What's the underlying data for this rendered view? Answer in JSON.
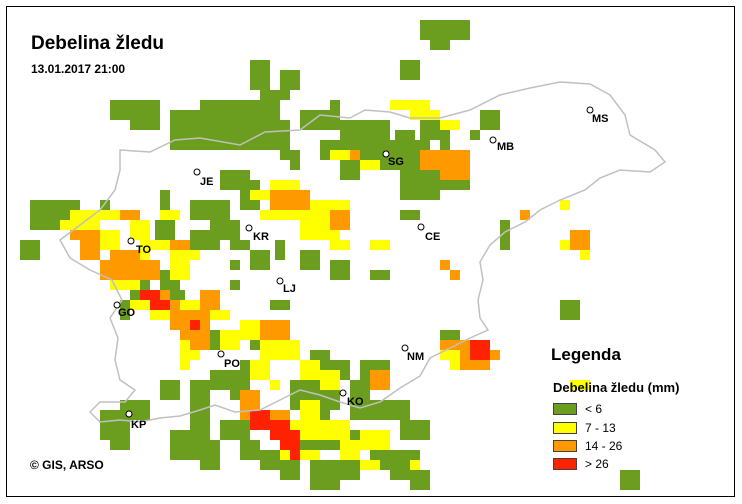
{
  "map": {
    "title": "Debelina žledu",
    "timestamp": "13.01.2017 21:00",
    "copyright": "© GIS, ARSO"
  },
  "legend": {
    "title": "Legenda",
    "subtitle": "Debelina žledu (mm)",
    "items": [
      {
        "label": "< 6",
        "color": "#6b9e1f"
      },
      {
        "label": "7 - 13",
        "color": "#ffff00"
      },
      {
        "label": "14 - 26",
        "color": "#ff9900"
      },
      {
        "label": "> 26",
        "color": "#ff2200"
      }
    ]
  },
  "cities": [
    {
      "code": "MS"
    },
    {
      "code": "MB"
    },
    {
      "code": "SG"
    },
    {
      "code": "JE"
    },
    {
      "code": "KR"
    },
    {
      "code": "CE"
    },
    {
      "code": "TO"
    },
    {
      "code": "LJ"
    },
    {
      "code": "GO"
    },
    {
      "code": "NM"
    },
    {
      "code": "PO"
    },
    {
      "code": "KO"
    },
    {
      "code": "KP"
    }
  ]
}
